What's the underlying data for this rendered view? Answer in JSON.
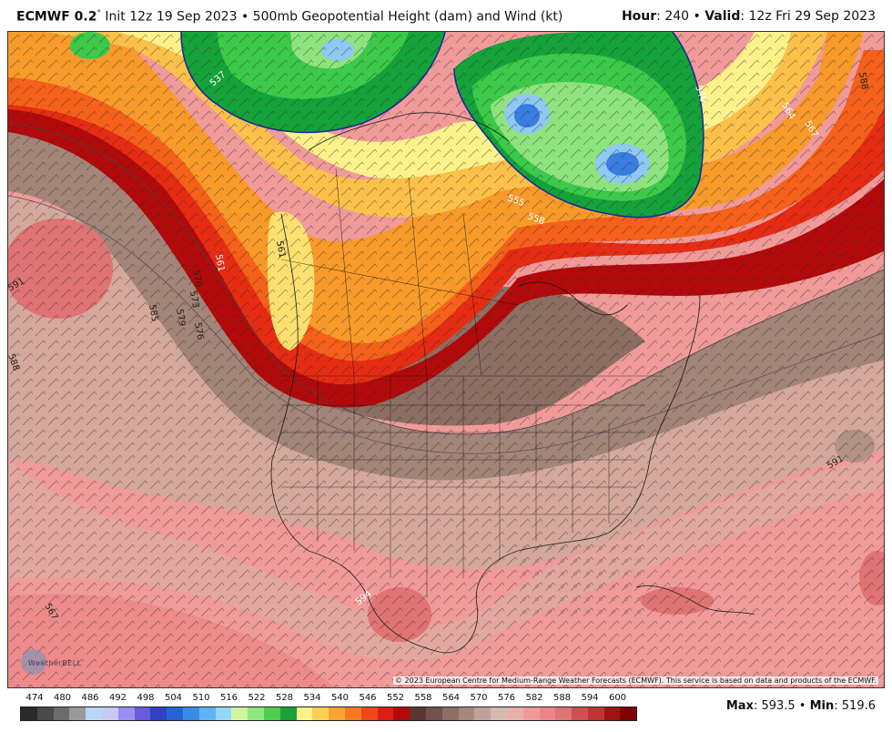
{
  "header": {
    "model": "ECMWF 0.2",
    "degree": "°",
    "init_text": "Init 12z 19 Sep 2023 • 500mb Geopotential Height (dam) and Wind (kt)",
    "hour_label": "Hour",
    "hour_value": ": 240 • ",
    "valid_label": "Valid",
    "valid_value": ": 12z Fri 29 Sep 2023"
  },
  "map": {
    "copyright": "© 2023 European Centre for Medium-Range Weather Forecasts (ECMWF). This service is based on data and products of the ECMWF.",
    "watermark": "WeatherBELL",
    "contour_labels": [
      "537",
      "561",
      "564",
      "567",
      "570",
      "573",
      "576",
      "579",
      "585",
      "588",
      "588",
      "591",
      "591",
      "594",
      "555",
      "558",
      "561",
      "567",
      "546"
    ],
    "colors": {
      "deep_pink": "#e07474",
      "pink": "#f09a9a",
      "salmon": "#d4a89c",
      "brown_light": "#b39286",
      "brown": "#8c6e63",
      "dark_red": "#b20a0a",
      "red": "#e62d14",
      "orange_red": "#f5611a",
      "orange": "#f79a2a",
      "light_orange": "#fbc04a",
      "yellow": "#fdf18a",
      "green_dark": "#16a23a",
      "green": "#3dc94a",
      "green_light": "#8fe37e",
      "blue_light": "#8fc8f0",
      "blue": "#3a7de0"
    }
  },
  "legend": {
    "labels": [
      "474",
      "480",
      "486",
      "492",
      "498",
      "504",
      "510",
      "516",
      "522",
      "528",
      "534",
      "540",
      "546",
      "552",
      "558",
      "564",
      "570",
      "576",
      "582",
      "588",
      "594",
      "600"
    ],
    "colors": [
      "#2a2a2a",
      "#4a4a4a",
      "#6c6c6c",
      "#9a9a9a",
      "#b9d7f5",
      "#c9c9f5",
      "#9a8ef0",
      "#6a5ae0",
      "#3240c8",
      "#2464d8",
      "#3a8ae8",
      "#5fb2f5",
      "#94d8f5",
      "#cff5a0",
      "#90e880",
      "#50cc50",
      "#1ca03c",
      "#fdf18a",
      "#fbd050",
      "#f9a330",
      "#f77a20",
      "#f0481a",
      "#dc1e14",
      "#b20a0a",
      "#5a3830",
      "#735048",
      "#8c6e63",
      "#a6887c",
      "#bfa297",
      "#d6bab0",
      "#e6b0a8",
      "#f09a9a",
      "#ec8686",
      "#e07474",
      "#d05050",
      "#c03434",
      "#a01414",
      "#800000"
    ]
  },
  "stats": {
    "max_label": "Max",
    "max_value": ": 593.5 • ",
    "min_label": "Min",
    "min_value": ": 519.6"
  }
}
